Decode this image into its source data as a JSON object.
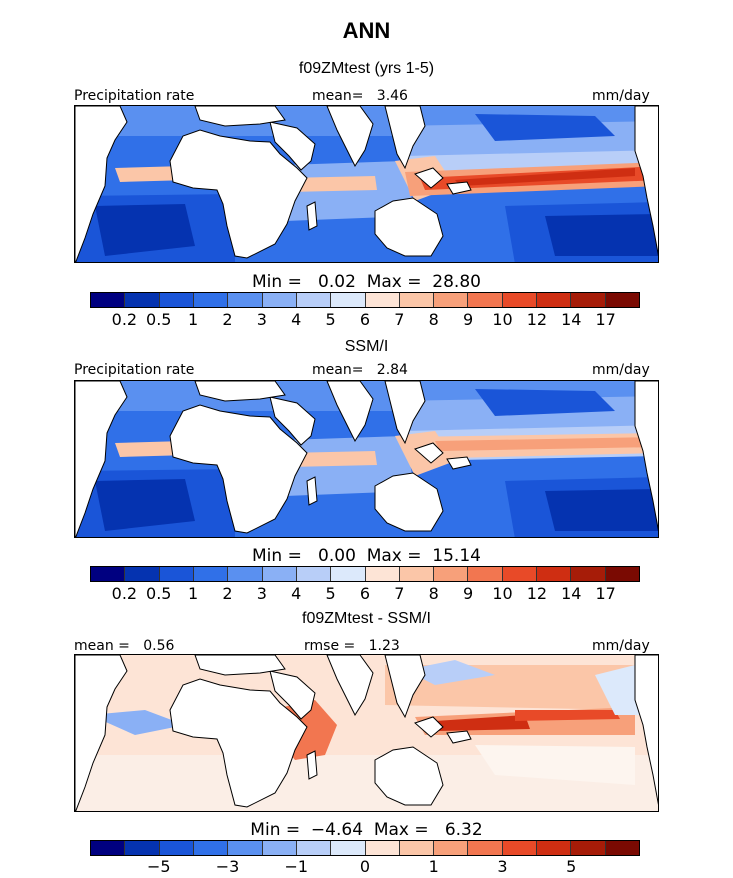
{
  "figure": {
    "title": "ANN",
    "colors": {
      "abs_scale": [
        "#000080",
        "#0533b0",
        "#1a55d8",
        "#3070e8",
        "#5a90f0",
        "#8ab0f5",
        "#b8cef8",
        "#dce9fb",
        "#fde4d6",
        "#fbc6a8",
        "#f7a07a",
        "#f27650",
        "#e84a28",
        "#cf2e12",
        "#a61c08",
        "#7a0a02"
      ],
      "diff_scale": [
        "#000080",
        "#0533b0",
        "#1a55d8",
        "#3070e8",
        "#5a90f0",
        "#8ab0f5",
        "#b8cef8",
        "#dce9fb",
        "#fde4d6",
        "#fbc6a8",
        "#f7a07a",
        "#f27650",
        "#e84a28",
        "#cf2e12",
        "#a61c08",
        "#7a0a02"
      ]
    },
    "panels": [
      {
        "subtitle": "f09ZMtest (yrs 1-5)",
        "left_label": "Precipitation rate",
        "center_label": "mean=   3.46",
        "right_label": "mm/day",
        "minmax": "Min =   0.02  Max =  28.80",
        "ticks": [
          "0.2",
          "0.5",
          "1",
          "2",
          "3",
          "4",
          "5",
          "6",
          "7",
          "8",
          "9",
          "10",
          "12",
          "14",
          "17"
        ]
      },
      {
        "subtitle": "SSM/I",
        "left_label": "Precipitation rate",
        "center_label": "mean=   2.84",
        "right_label": "mm/day",
        "minmax": "Min =   0.00  Max =  15.14",
        "ticks": [
          "0.2",
          "0.5",
          "1",
          "2",
          "3",
          "4",
          "5",
          "6",
          "7",
          "8",
          "9",
          "10",
          "12",
          "14",
          "17"
        ]
      },
      {
        "subtitle": "f09ZMtest - SSM/I",
        "left_label": "mean =   0.56",
        "center_label": "rmse =   1.23",
        "right_label": "mm/day",
        "minmax": "Min =  −4.64  Max =   6.32",
        "ticks": [
          "−5",
          "−3",
          "−1",
          "0",
          "1",
          "3",
          "5"
        ]
      }
    ]
  }
}
